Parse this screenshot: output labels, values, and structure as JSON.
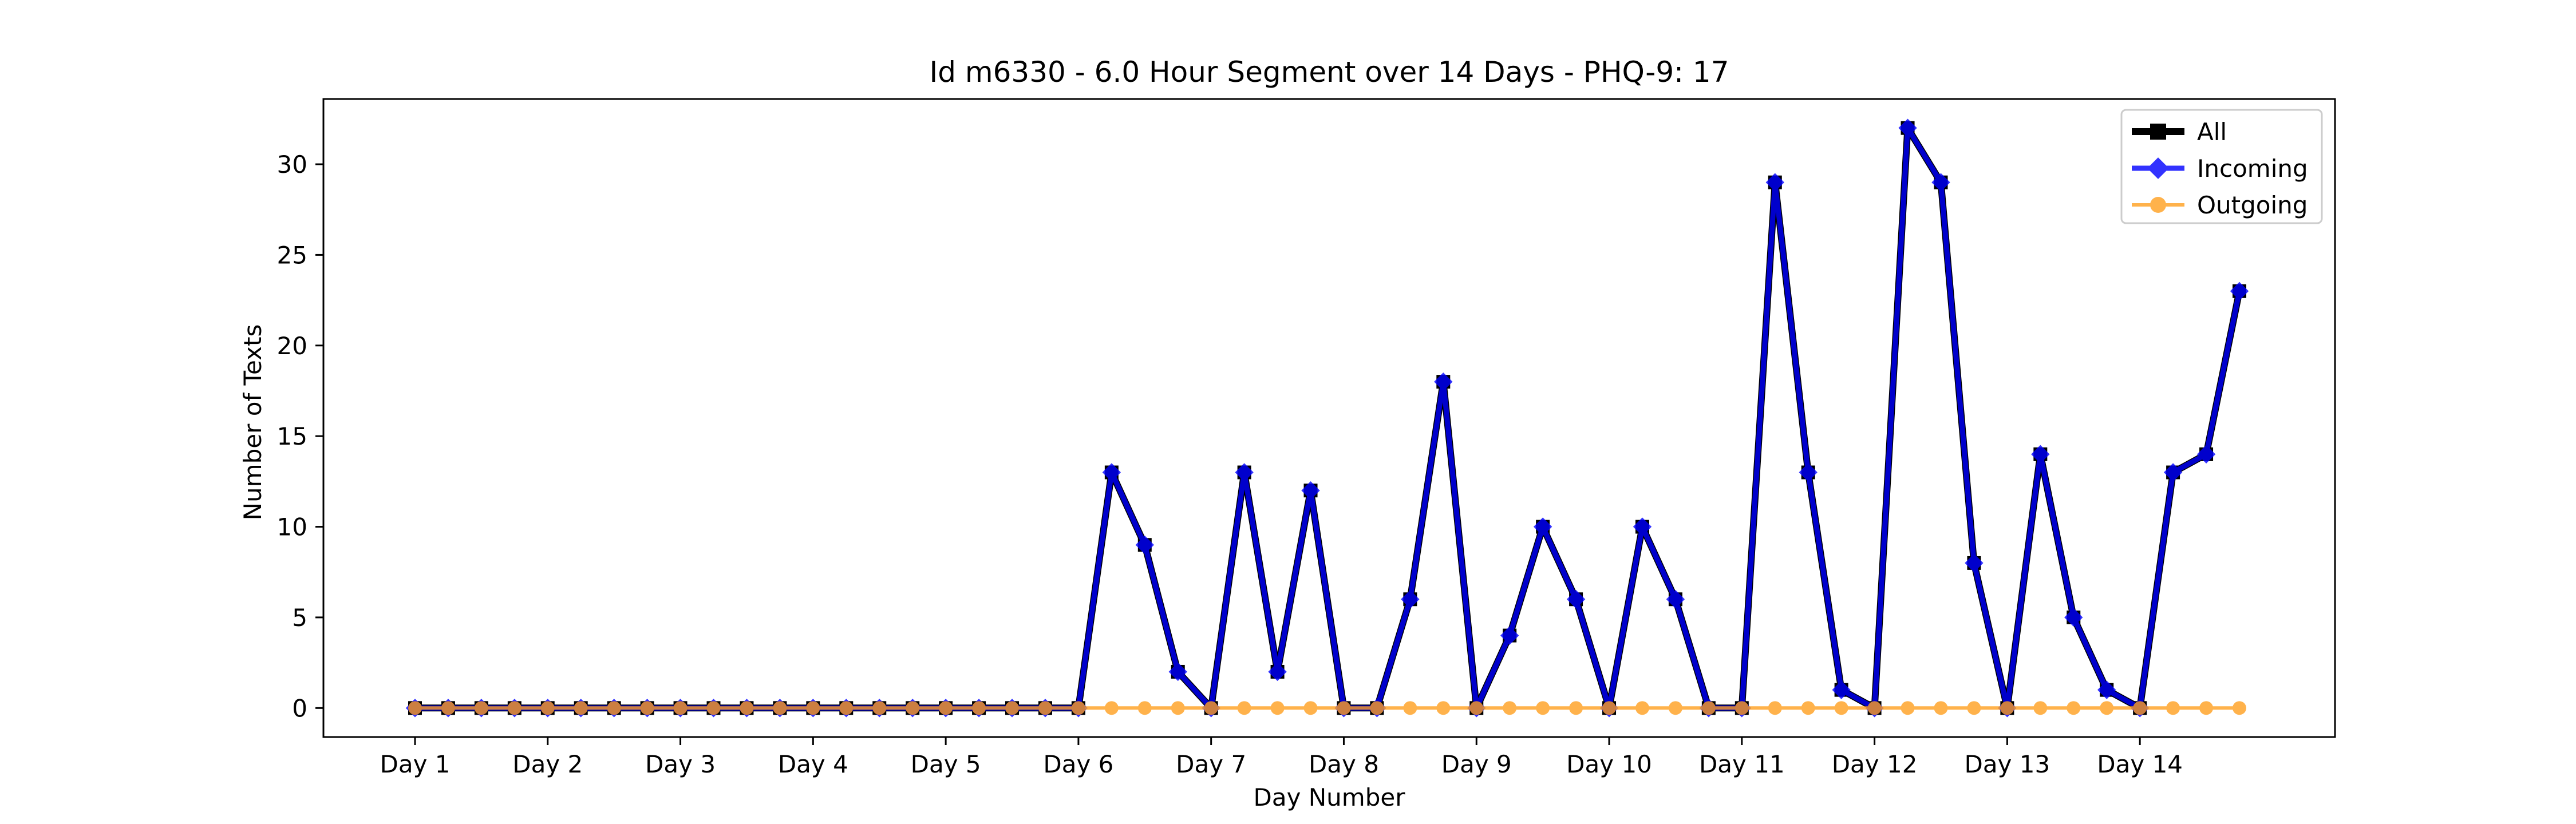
{
  "chart_data": {
    "type": "line",
    "title": "Id m6330 - 6.0 Hour Segment over 14 Days - PHQ-9: 17",
    "xlabel": "Day Number",
    "ylabel": "Number of Texts",
    "x_tick_labels": [
      "Day 1",
      "Day 2",
      "Day 3",
      "Day 4",
      "Day 5",
      "Day 6",
      "Day 7",
      "Day 8",
      "Day 9",
      "Day 10",
      "Day 11",
      "Day 12",
      "Day 13",
      "Day 14"
    ],
    "y_ticks": [
      0,
      5,
      10,
      15,
      20,
      25,
      30
    ],
    "ylim": [
      -1.6,
      33.6
    ],
    "segments_per_day": 4,
    "legend_position": "top-right",
    "grid": false,
    "series": [
      {
        "name": "All",
        "color": "#000000",
        "marker": "square",
        "values": [
          0,
          0,
          0,
          0,
          0,
          0,
          0,
          0,
          0,
          0,
          0,
          0,
          0,
          0,
          0,
          0,
          0,
          0,
          0,
          0,
          0,
          13,
          9,
          2,
          0,
          13,
          2,
          12,
          0,
          0,
          6,
          18,
          0,
          4,
          10,
          6,
          0,
          10,
          6,
          0,
          0,
          29,
          13,
          1,
          0,
          32,
          29,
          8,
          0,
          14,
          5,
          1,
          0,
          13,
          14,
          23
        ]
      },
      {
        "name": "Incoming",
        "color": "#0000ff",
        "marker": "diamond",
        "values": [
          0,
          0,
          0,
          0,
          0,
          0,
          0,
          0,
          0,
          0,
          0,
          0,
          0,
          0,
          0,
          0,
          0,
          0,
          0,
          0,
          0,
          13,
          9,
          2,
          0,
          13,
          2,
          12,
          0,
          0,
          6,
          18,
          0,
          4,
          10,
          6,
          0,
          10,
          6,
          0,
          0,
          29,
          13,
          1,
          0,
          32,
          29,
          8,
          0,
          14,
          5,
          1,
          0,
          13,
          14,
          23
        ]
      },
      {
        "name": "Outgoing",
        "color": "#ff9f1f",
        "marker": "circle",
        "values": [
          0,
          0,
          0,
          0,
          0,
          0,
          0,
          0,
          0,
          0,
          0,
          0,
          0,
          0,
          0,
          0,
          0,
          0,
          0,
          0,
          0,
          0,
          0,
          0,
          0,
          0,
          0,
          0,
          0,
          0,
          0,
          0,
          0,
          0,
          0,
          0,
          0,
          0,
          0,
          0,
          0,
          0,
          0,
          0,
          0,
          0,
          0,
          0,
          0,
          0,
          0,
          0,
          0,
          0,
          0,
          0
        ]
      }
    ]
  }
}
